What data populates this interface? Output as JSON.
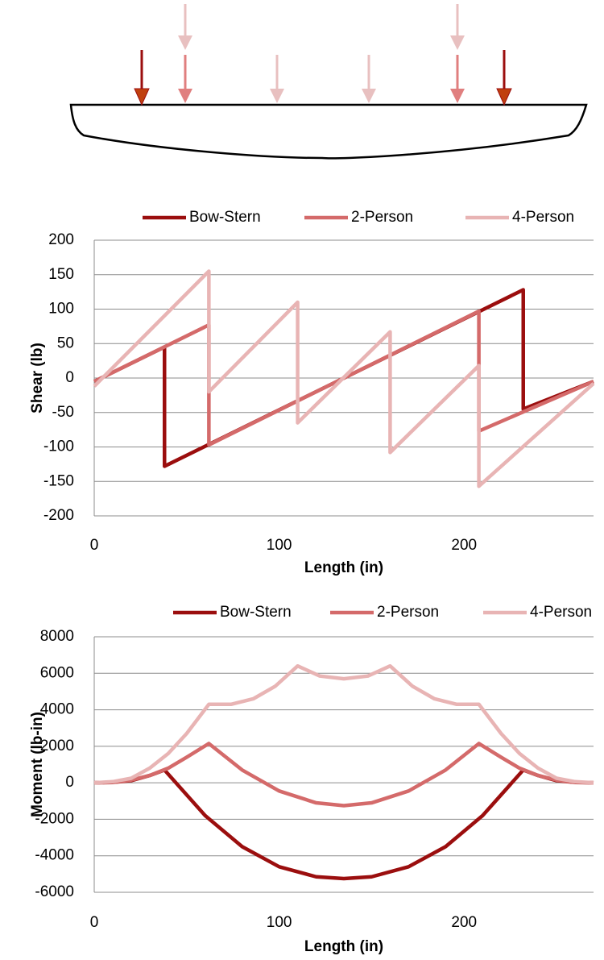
{
  "chart_data": [
    {
      "type": "line",
      "x_label": "Length (in)",
      "y_label": "Shear (lb)",
      "legend": "top",
      "xlim": [
        0,
        270
      ],
      "xticks": [
        0,
        100,
        200
      ],
      "ylim": [
        -200,
        200
      ],
      "yticks": [
        -200,
        -150,
        -100,
        -50,
        0,
        50,
        100,
        150,
        200
      ],
      "grid": true,
      "series": [
        {
          "name": "Bow-Stern",
          "color": "#9b0e0e",
          "x": [
            0,
            38,
            38,
            232,
            232,
            270
          ],
          "values": [
            -5,
            45,
            -128,
            128,
            -45,
            -5
          ]
        },
        {
          "name": "2-Person",
          "color": "#d46a6a",
          "x": [
            0,
            62,
            62,
            208,
            208,
            270
          ],
          "values": [
            -5,
            77,
            -97,
            97,
            -77,
            -5
          ]
        },
        {
          "name": "4-Person",
          "color": "#e8b4b4",
          "x": [
            0,
            62,
            62,
            110,
            110,
            160,
            160,
            208,
            208,
            270
          ],
          "values": [
            -12,
            155,
            -20,
            110,
            -65,
            67,
            -108,
            18,
            -157,
            -8
          ]
        }
      ]
    },
    {
      "type": "line",
      "x_label": "Length (in)",
      "y_label": "Moment (lb-in)",
      "legend": "top",
      "xlim": [
        0,
        270
      ],
      "xticks": [
        0,
        100,
        200
      ],
      "ylim": [
        -6000,
        8000
      ],
      "yticks": [
        -6000,
        -4000,
        -2000,
        0,
        2000,
        4000,
        6000,
        8000
      ],
      "grid": true,
      "series": [
        {
          "name": "Bow-Stern",
          "color": "#9b0e0e",
          "x": [
            0,
            10,
            20,
            30,
            38,
            60,
            80,
            100,
            120,
            135,
            150,
            170,
            190,
            210,
            232,
            240,
            250,
            260,
            270
          ],
          "values": [
            0,
            20,
            120,
            400,
            700,
            -1800,
            -3500,
            -4600,
            -5150,
            -5250,
            -5150,
            -4600,
            -3500,
            -1800,
            700,
            400,
            120,
            20,
            0
          ]
        },
        {
          "name": "2-Person",
          "color": "#d46a6a",
          "x": [
            0,
            10,
            20,
            30,
            40,
            50,
            62,
            80,
            100,
            120,
            135,
            150,
            170,
            190,
            208,
            220,
            230,
            240,
            250,
            260,
            270
          ],
          "values": [
            0,
            30,
            150,
            400,
            800,
            1400,
            2150,
            700,
            -450,
            -1100,
            -1250,
            -1100,
            -450,
            700,
            2150,
            1400,
            800,
            400,
            150,
            30,
            0
          ]
        },
        {
          "name": "4-Person",
          "color": "#e8b4b4",
          "x": [
            0,
            10,
            20,
            30,
            40,
            50,
            62,
            74,
            86,
            98,
            110,
            122,
            135,
            148,
            160,
            172,
            184,
            196,
            208,
            220,
            230,
            240,
            250,
            260,
            270
          ],
          "values": [
            0,
            60,
            250,
            800,
            1600,
            2700,
            4300,
            4300,
            4600,
            5300,
            6400,
            5850,
            5700,
            5850,
            6400,
            5300,
            4600,
            4300,
            4300,
            2700,
            1600,
            800,
            250,
            60,
            0
          ]
        }
      ]
    }
  ]
}
